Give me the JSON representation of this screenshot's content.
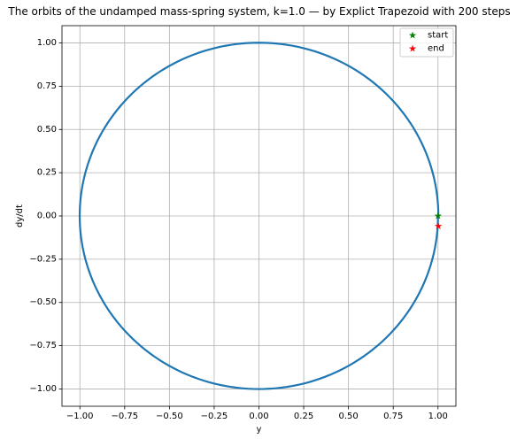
{
  "chart_data": {
    "type": "line",
    "title": "The orbits of the undamped mass-spring system, k=1.0 — by Explict Trapezoid with 200 steps",
    "xlabel": "y",
    "ylabel": "dy/dt",
    "xlim": [
      -1.1,
      1.1
    ],
    "ylim": [
      -1.1,
      1.1
    ],
    "xticks": [
      -1.0,
      -0.75,
      -0.5,
      -0.25,
      0.0,
      0.25,
      0.5,
      0.75,
      1.0
    ],
    "xtick_labels": [
      "−1.00",
      "−0.75",
      "−0.50",
      "−0.25",
      "0.00",
      "0.25",
      "0.50",
      "0.75",
      "1.00"
    ],
    "yticks": [
      -1.0,
      -0.75,
      -0.5,
      -0.25,
      0.0,
      0.25,
      0.5,
      0.75,
      1.0
    ],
    "ytick_labels": [
      "−1.00",
      "−0.75",
      "−0.50",
      "−0.25",
      "0.00",
      "0.25",
      "0.50",
      "0.75",
      "1.00"
    ],
    "grid": true,
    "legend_position": "top-right",
    "orbit": {
      "radius_start": 1.0,
      "radius_end": 1.002,
      "turns": 1.0,
      "steps": 200,
      "color": "#1f77b4"
    },
    "markers": [
      {
        "label": "start",
        "x": 1.0,
        "y": 0.0,
        "color": "#008000"
      },
      {
        "label": "end",
        "x": 1.002,
        "y": -0.06,
        "color": "#ff0000"
      }
    ]
  }
}
